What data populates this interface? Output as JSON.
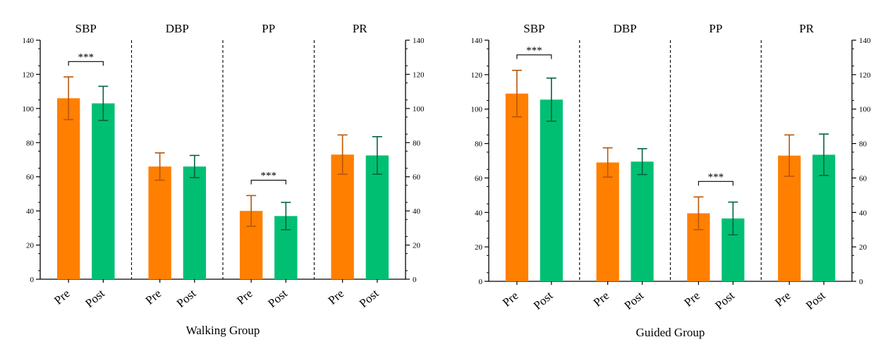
{
  "colors": {
    "pre": "#ff7f00",
    "post": "#00bf73",
    "pre_err": "#b8560a",
    "post_err": "#05633f",
    "axis": "#000000"
  },
  "chart_data": [
    {
      "type": "bar",
      "xlabel": "Walking Group",
      "ylabel": "",
      "ylim": [
        0,
        140
      ],
      "yticks": [
        0,
        20,
        40,
        60,
        80,
        100,
        120,
        140
      ],
      "secondary_y_axis": true,
      "panel_labels": [
        "SBP",
        "DBP",
        "PP",
        "PR"
      ],
      "categories": [
        "Pre",
        "Post"
      ],
      "series": [
        {
          "panel": "SBP",
          "values": [
            106,
            103
          ],
          "errors": [
            12.5,
            10
          ]
        },
        {
          "panel": "DBP",
          "values": [
            66,
            66
          ],
          "errors": [
            8,
            6.5
          ]
        },
        {
          "panel": "PP",
          "values": [
            40,
            37
          ],
          "errors": [
            9,
            8
          ]
        },
        {
          "panel": "PR",
          "values": [
            73,
            72.5
          ],
          "errors": [
            11.5,
            11
          ]
        }
      ],
      "significance": [
        {
          "panel": "SBP",
          "label": "***"
        },
        {
          "panel": "PP",
          "label": "***"
        }
      ]
    },
    {
      "type": "bar",
      "xlabel": "Guided Group",
      "ylabel": "",
      "ylim": [
        0,
        140
      ],
      "yticks": [
        0,
        20,
        40,
        60,
        80,
        100,
        120,
        140
      ],
      "secondary_y_axis": true,
      "panel_labels": [
        "SBP",
        "DBP",
        "PP",
        "PR"
      ],
      "categories": [
        "Pre",
        "Post"
      ],
      "series": [
        {
          "panel": "SBP",
          "values": [
            109,
            105.5
          ],
          "errors": [
            13.5,
            12.5
          ]
        },
        {
          "panel": "DBP",
          "values": [
            69,
            69.5
          ],
          "errors": [
            8.5,
            7.5
          ]
        },
        {
          "panel": "PP",
          "values": [
            39.5,
            36.5
          ],
          "errors": [
            9.5,
            9.5
          ]
        },
        {
          "panel": "PR",
          "values": [
            73,
            73.5
          ],
          "errors": [
            12,
            12
          ]
        }
      ],
      "significance": [
        {
          "panel": "SBP",
          "label": "***"
        },
        {
          "panel": "PP",
          "label": "***"
        }
      ]
    }
  ]
}
